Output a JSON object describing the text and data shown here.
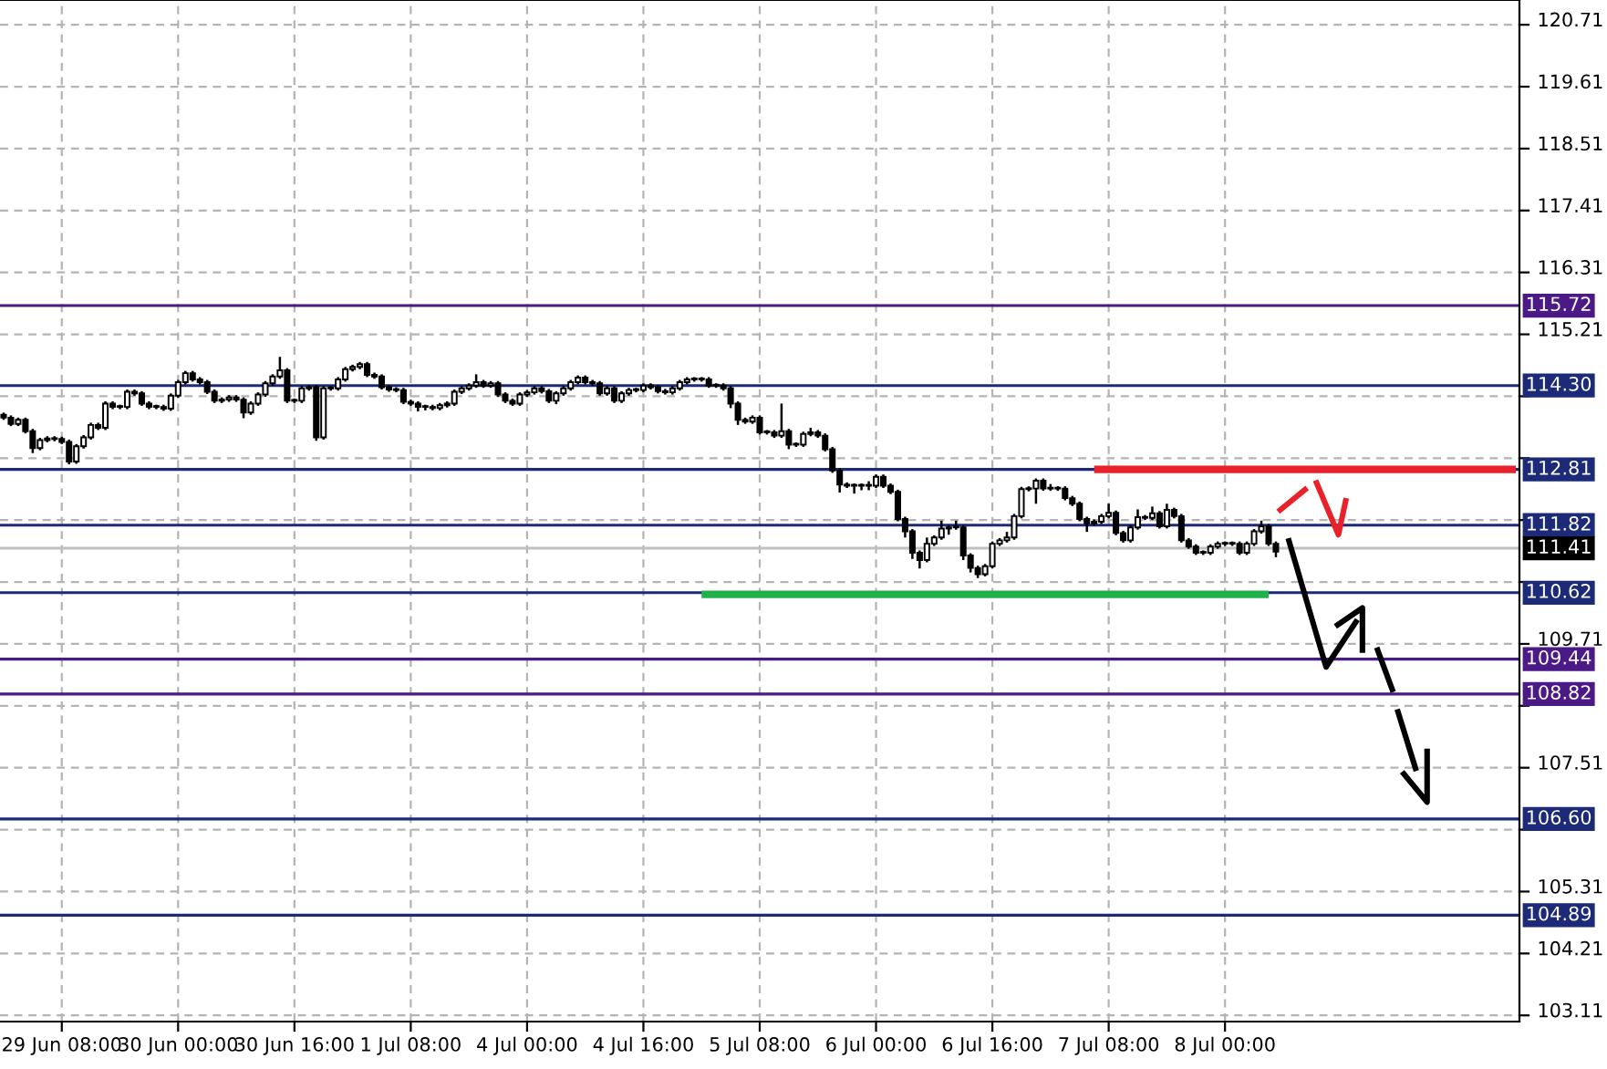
{
  "chart_data": {
    "type": "candlestick",
    "categories": [
      null,
      null,
      null,
      null,
      null,
      null,
      null,
      null,
      "29 Jun 08:00",
      null,
      null,
      null,
      null,
      null,
      null,
      null,
      null,
      null,
      null,
      null,
      null,
      null,
      null,
      null,
      "30 Jun 00:00",
      null,
      null,
      null,
      null,
      null,
      null,
      null,
      null,
      null,
      null,
      null,
      null,
      null,
      null,
      null,
      "30 Jun 16:00",
      null,
      null,
      null,
      null,
      null,
      null,
      null,
      null,
      null,
      null,
      null,
      null,
      null,
      null,
      null,
      "1 Jul 08:00",
      null,
      null,
      null,
      null,
      null,
      null,
      null,
      null,
      null,
      null,
      null,
      null,
      null,
      null,
      null,
      "4 Jul 00:00",
      null,
      null,
      null,
      null,
      null,
      null,
      null,
      null,
      null,
      null,
      null,
      null,
      null,
      null,
      null,
      "4 Jul 16:00",
      null,
      null,
      null,
      null,
      null,
      null,
      null,
      null,
      null,
      null,
      null,
      null,
      null,
      null,
      null,
      "5 Jul 08:00",
      null,
      null,
      null,
      null,
      null,
      null,
      null,
      null,
      null,
      null,
      null,
      null,
      null,
      null,
      null,
      "6 Jul 00:00",
      null,
      null,
      null,
      null,
      null,
      null,
      null,
      null,
      null,
      null,
      null,
      null,
      null,
      null,
      null,
      "6 Jul 16:00",
      null,
      null,
      null,
      null,
      null,
      null,
      null,
      null,
      null,
      null,
      null,
      null,
      null,
      null,
      null,
      "7 Jul 08:00",
      null,
      null,
      null,
      null,
      null,
      null,
      null,
      null,
      null,
      null,
      null,
      null,
      null,
      null,
      null,
      "8 Jul 00:00",
      null,
      null,
      null,
      null,
      null,
      null,
      null,
      null,
      null,
      null,
      null,
      null,
      null,
      null,
      null,
      null,
      null,
      null,
      null,
      null,
      null,
      null,
      null,
      null,
      null,
      null,
      null,
      null,
      null,
      null,
      null,
      null,
      null,
      null,
      null,
      null,
      null,
      null,
      null,
      null
    ],
    "ohlc": [
      [
        113.78,
        113.82,
        113.69,
        113.73
      ],
      [
        113.73,
        113.77,
        113.58,
        113.62
      ],
      [
        113.62,
        113.73,
        113.58,
        113.69
      ],
      [
        113.69,
        113.73,
        113.45,
        113.49
      ],
      [
        113.49,
        113.53,
        113.1,
        113.19
      ],
      [
        113.19,
        113.37,
        113.15,
        113.33
      ],
      [
        113.33,
        113.4,
        113.29,
        113.36
      ],
      [
        113.36,
        113.4,
        113.31,
        113.35
      ],
      [
        113.35,
        113.39,
        113.26,
        113.3
      ],
      [
        113.3,
        113.34,
        112.9,
        112.95
      ],
      [
        112.95,
        113.26,
        112.91,
        113.22
      ],
      [
        113.22,
        113.42,
        113.18,
        113.38
      ],
      [
        113.38,
        113.64,
        113.34,
        113.6
      ],
      [
        113.6,
        113.64,
        113.51,
        113.55
      ],
      [
        113.55,
        114.02,
        113.51,
        113.98
      ],
      [
        113.98,
        114.02,
        113.88,
        113.92
      ],
      [
        113.92,
        113.96,
        113.88,
        113.92
      ],
      [
        113.92,
        114.23,
        113.88,
        114.19
      ],
      [
        114.19,
        114.23,
        114.12,
        114.16
      ],
      [
        114.16,
        114.2,
        113.94,
        113.98
      ],
      [
        113.98,
        114.02,
        113.88,
        113.92
      ],
      [
        113.92,
        113.96,
        113.88,
        113.92
      ],
      [
        113.92,
        113.96,
        113.85,
        113.89
      ],
      [
        113.89,
        114.16,
        113.85,
        114.12
      ],
      [
        114.12,
        114.4,
        114.08,
        114.36
      ],
      [
        114.36,
        114.56,
        114.32,
        114.52
      ],
      [
        114.52,
        114.56,
        114.37,
        114.41
      ],
      [
        114.41,
        114.45,
        114.32,
        114.36
      ],
      [
        114.36,
        114.4,
        114.15,
        114.19
      ],
      [
        114.19,
        114.23,
        113.99,
        114.03
      ],
      [
        114.03,
        114.09,
        113.99,
        114.05
      ],
      [
        114.05,
        114.13,
        114.01,
        114.09
      ],
      [
        114.09,
        114.13,
        114.01,
        114.05
      ],
      [
        114.05,
        114.09,
        113.72,
        113.82
      ],
      [
        113.82,
        114.02,
        113.78,
        113.98
      ],
      [
        113.98,
        114.18,
        113.94,
        114.14
      ],
      [
        114.14,
        114.38,
        114.1,
        114.34
      ],
      [
        114.34,
        114.5,
        114.3,
        114.46
      ],
      [
        114.46,
        114.81,
        114.42,
        114.57
      ],
      [
        114.57,
        114.61,
        113.99,
        114.03
      ],
      [
        114.03,
        114.07,
        113.99,
        114.03
      ],
      [
        114.03,
        114.29,
        113.99,
        114.25
      ],
      [
        114.25,
        114.31,
        114.21,
        114.27
      ],
      [
        114.27,
        114.31,
        113.32,
        113.38
      ],
      [
        113.38,
        114.29,
        113.34,
        114.25
      ],
      [
        114.25,
        114.29,
        114.21,
        114.25
      ],
      [
        114.25,
        114.45,
        114.21,
        114.41
      ],
      [
        114.41,
        114.63,
        114.37,
        114.59
      ],
      [
        114.59,
        114.67,
        114.55,
        114.63
      ],
      [
        114.63,
        114.72,
        114.59,
        114.68
      ],
      [
        114.68,
        114.72,
        114.45,
        114.49
      ],
      [
        114.49,
        114.53,
        114.42,
        114.46
      ],
      [
        114.46,
        114.5,
        114.23,
        114.27
      ],
      [
        114.27,
        114.31,
        114.19,
        114.23
      ],
      [
        114.23,
        114.27,
        114.18,
        114.22
      ],
      [
        114.22,
        114.26,
        113.97,
        114.01
      ],
      [
        114.01,
        114.05,
        113.94,
        113.98
      ],
      [
        113.98,
        114.02,
        113.84,
        113.92
      ],
      [
        113.92,
        113.96,
        113.86,
        113.92
      ],
      [
        113.92,
        113.96,
        113.86,
        113.9
      ],
      [
        113.9,
        113.99,
        113.86,
        113.95
      ],
      [
        113.95,
        114.02,
        113.91,
        113.98
      ],
      [
        113.98,
        114.23,
        113.94,
        114.19
      ],
      [
        114.19,
        114.29,
        114.15,
        114.25
      ],
      [
        114.25,
        114.34,
        114.21,
        114.3
      ],
      [
        114.3,
        114.5,
        114.26,
        114.36
      ],
      [
        114.36,
        114.4,
        114.26,
        114.3
      ],
      [
        114.3,
        114.38,
        114.26,
        114.34
      ],
      [
        114.34,
        114.38,
        114.1,
        114.14
      ],
      [
        114.14,
        114.18,
        113.99,
        114.03
      ],
      [
        114.03,
        114.07,
        113.94,
        113.98
      ],
      [
        113.98,
        114.18,
        113.94,
        114.14
      ],
      [
        114.14,
        114.22,
        114.1,
        114.18
      ],
      [
        114.18,
        114.29,
        114.14,
        114.25
      ],
      [
        114.25,
        114.29,
        114.16,
        114.2
      ],
      [
        114.2,
        114.24,
        113.99,
        114.03
      ],
      [
        114.03,
        114.2,
        113.97,
        114.16
      ],
      [
        114.16,
        114.29,
        114.12,
        114.25
      ],
      [
        114.25,
        114.4,
        114.21,
        114.36
      ],
      [
        114.36,
        114.48,
        114.32,
        114.44
      ],
      [
        114.44,
        114.48,
        114.32,
        114.36
      ],
      [
        114.36,
        114.4,
        114.3,
        114.34
      ],
      [
        114.34,
        114.38,
        114.12,
        114.16
      ],
      [
        114.16,
        114.29,
        114.12,
        114.25
      ],
      [
        114.25,
        114.29,
        113.99,
        114.03
      ],
      [
        114.03,
        114.2,
        113.99,
        114.16
      ],
      [
        114.16,
        114.26,
        114.12,
        114.22
      ],
      [
        114.22,
        114.26,
        114.18,
        114.22
      ],
      [
        114.22,
        114.34,
        114.18,
        114.3
      ],
      [
        114.3,
        114.34,
        114.23,
        114.27
      ],
      [
        114.27,
        114.31,
        114.16,
        114.2
      ],
      [
        114.2,
        114.24,
        114.14,
        114.18
      ],
      [
        114.18,
        114.29,
        114.14,
        114.25
      ],
      [
        114.25,
        114.4,
        114.21,
        114.36
      ],
      [
        114.36,
        114.45,
        114.32,
        114.41
      ],
      [
        114.41,
        114.45,
        114.37,
        114.41
      ],
      [
        114.41,
        114.45,
        114.37,
        114.41
      ],
      [
        114.41,
        114.45,
        114.26,
        114.3
      ],
      [
        114.3,
        114.34,
        114.26,
        114.3
      ],
      [
        114.3,
        114.34,
        114.21,
        114.25
      ],
      [
        114.25,
        114.29,
        113.9,
        113.98
      ],
      [
        113.98,
        114.02,
        113.6,
        113.69
      ],
      [
        113.69,
        113.73,
        113.62,
        113.66
      ],
      [
        113.66,
        113.77,
        113.62,
        113.73
      ],
      [
        113.73,
        113.77,
        113.43,
        113.47
      ],
      [
        113.47,
        113.51,
        113.43,
        113.47
      ],
      [
        113.47,
        113.51,
        113.37,
        113.41
      ],
      [
        113.41,
        113.98,
        113.37,
        113.49
      ],
      [
        113.49,
        113.53,
        113.17,
        113.25
      ],
      [
        113.25,
        113.29,
        113.21,
        113.25
      ],
      [
        113.25,
        113.48,
        113.21,
        113.44
      ],
      [
        113.44,
        113.55,
        113.4,
        113.47
      ],
      [
        113.47,
        113.51,
        113.37,
        113.41
      ],
      [
        113.41,
        113.45,
        113.13,
        113.17
      ],
      [
        113.17,
        113.21,
        112.75,
        112.79
      ],
      [
        112.79,
        112.83,
        112.4,
        112.54
      ],
      [
        112.54,
        112.58,
        112.48,
        112.52
      ],
      [
        112.52,
        112.56,
        112.38,
        112.52
      ],
      [
        112.52,
        112.56,
        112.44,
        112.52
      ],
      [
        112.52,
        112.6,
        112.44,
        112.52
      ],
      [
        112.52,
        112.72,
        112.48,
        112.68
      ],
      [
        112.68,
        112.72,
        112.48,
        112.52
      ],
      [
        112.52,
        112.56,
        112.37,
        112.41
      ],
      [
        112.41,
        112.45,
        111.89,
        111.93
      ],
      [
        111.93,
        111.97,
        111.6,
        111.71
      ],
      [
        111.71,
        111.75,
        111.22,
        111.33
      ],
      [
        111.33,
        111.37,
        111.05,
        111.2
      ],
      [
        111.2,
        111.6,
        111.16,
        111.49
      ],
      [
        111.49,
        111.64,
        111.45,
        111.6
      ],
      [
        111.6,
        111.9,
        111.56,
        111.76
      ],
      [
        111.76,
        111.82,
        111.65,
        111.78
      ],
      [
        111.78,
        111.9,
        111.74,
        111.78
      ],
      [
        111.78,
        111.82,
        111.2,
        111.28
      ],
      [
        111.28,
        111.32,
        110.98,
        111.06
      ],
      [
        111.06,
        111.1,
        110.88,
        110.95
      ],
      [
        110.95,
        111.13,
        110.91,
        111.09
      ],
      [
        111.09,
        111.53,
        111.05,
        111.49
      ],
      [
        111.49,
        111.59,
        111.45,
        111.55
      ],
      [
        111.55,
        111.7,
        111.51,
        111.6
      ],
      [
        111.6,
        112.02,
        111.56,
        111.98
      ],
      [
        111.98,
        112.5,
        111.94,
        112.46
      ],
      [
        112.46,
        112.51,
        112.42,
        112.47
      ],
      [
        112.47,
        112.65,
        112.2,
        112.61
      ],
      [
        112.61,
        112.65,
        112.43,
        112.47
      ],
      [
        112.47,
        112.55,
        112.43,
        112.47
      ],
      [
        112.47,
        112.51,
        112.43,
        112.47
      ],
      [
        112.47,
        112.51,
        112.26,
        112.3
      ],
      [
        112.3,
        112.34,
        112.16,
        112.2
      ],
      [
        112.2,
        112.24,
        111.89,
        111.93
      ],
      [
        111.93,
        111.97,
        111.7,
        111.85
      ],
      [
        111.85,
        111.92,
        111.81,
        111.88
      ],
      [
        111.88,
        112.02,
        111.84,
        111.98
      ],
      [
        111.98,
        112.2,
        111.94,
        112.04
      ],
      [
        112.04,
        112.08,
        111.64,
        111.68
      ],
      [
        111.68,
        111.72,
        111.51,
        111.55
      ],
      [
        111.55,
        111.82,
        111.51,
        111.78
      ],
      [
        111.78,
        112.1,
        111.74,
        111.96
      ],
      [
        111.96,
        112.0,
        111.91,
        111.95
      ],
      [
        111.95,
        112.15,
        111.91,
        112.03
      ],
      [
        112.03,
        112.07,
        111.76,
        111.8
      ],
      [
        111.8,
        112.2,
        111.76,
        112.09
      ],
      [
        112.09,
        112.13,
        111.94,
        111.98
      ],
      [
        111.98,
        112.02,
        111.51,
        111.55
      ],
      [
        111.55,
        111.59,
        111.4,
        111.44
      ],
      [
        111.44,
        111.48,
        111.29,
        111.33
      ],
      [
        111.33,
        111.37,
        111.29,
        111.33
      ],
      [
        111.33,
        111.48,
        111.29,
        111.44
      ],
      [
        111.44,
        111.53,
        111.4,
        111.49
      ],
      [
        111.49,
        111.53,
        111.45,
        111.49
      ],
      [
        111.49,
        111.53,
        111.45,
        111.49
      ],
      [
        111.49,
        111.53,
        111.29,
        111.33
      ],
      [
        111.33,
        111.53,
        111.29,
        111.49
      ],
      [
        111.49,
        111.75,
        111.45,
        111.71
      ],
      [
        111.71,
        111.9,
        111.67,
        111.8
      ],
      [
        111.8,
        111.84,
        111.45,
        111.49
      ],
      [
        111.49,
        111.53,
        111.25,
        111.35
      ],
      null,
      null,
      null,
      null,
      null,
      null,
      null,
      null,
      null,
      null,
      null,
      null,
      null,
      null,
      null,
      null,
      null,
      null,
      null,
      null,
      null,
      null,
      null,
      null,
      null,
      null,
      null,
      null,
      null,
      null,
      null,
      null,
      null
    ],
    "series": [
      {
        "type": "line",
        "color": "#e8212a",
        "values": [
          null,
          null,
          null,
          null,
          null,
          null,
          null,
          null,
          null,
          null,
          null,
          null,
          null,
          null,
          null,
          null,
          null,
          null,
          null,
          null,
          null,
          null,
          null,
          null,
          null,
          null,
          null,
          null,
          null,
          null,
          null,
          null,
          null,
          null,
          null,
          null,
          null,
          null,
          null,
          null,
          null,
          null,
          null,
          null,
          null,
          null,
          null,
          null,
          null,
          null,
          null,
          null,
          null,
          null,
          null,
          null,
          null,
          null,
          null,
          null,
          null,
          null,
          null,
          null,
          null,
          null,
          null,
          null,
          null,
          null,
          null,
          null,
          null,
          null,
          null,
          null,
          null,
          null,
          null,
          null,
          null,
          null,
          null,
          null,
          null,
          null,
          null,
          null,
          null,
          null,
          null,
          null,
          null,
          null,
          null,
          null,
          null,
          null,
          null,
          null,
          null,
          null,
          null,
          null,
          null,
          null,
          null,
          null,
          null,
          null,
          null,
          null,
          null,
          null,
          null,
          null,
          null,
          null,
          null,
          null,
          null,
          null,
          null,
          null,
          null,
          null,
          null,
          null,
          null,
          null,
          null,
          null,
          null,
          null,
          null,
          null,
          null,
          null,
          null,
          null,
          null,
          null,
          null,
          null,
          null,
          null,
          null,
          null,
          null,
          null,
          112.81,
          112.81,
          112.81,
          112.81,
          112.81,
          112.81,
          112.81,
          112.81,
          112.81,
          112.81,
          112.81,
          112.81,
          112.81,
          112.81,
          112.81,
          112.81,
          112.81,
          112.81,
          112.81,
          112.81,
          112.81,
          112.81,
          112.81,
          112.81,
          112.81,
          112.81,
          112.81,
          112.81,
          112.81,
          112.81,
          112.81,
          112.81,
          112.81,
          112.81,
          112.81,
          112.81,
          112.81,
          112.81,
          112.81,
          112.81,
          112.81,
          112.81,
          112.81,
          112.81,
          112.81,
          112.81,
          112.81,
          112.81,
          112.81,
          112.81,
          112.81,
          112.81,
          112.81,
          112.81,
          112.81,
          112.81,
          112.81,
          112.81,
          112.81
        ]
      },
      {
        "type": "line",
        "color": "#22b04a",
        "values": [
          null,
          null,
          null,
          null,
          null,
          null,
          null,
          null,
          null,
          null,
          null,
          null,
          null,
          null,
          null,
          null,
          null,
          null,
          null,
          null,
          null,
          null,
          null,
          null,
          null,
          null,
          null,
          null,
          null,
          null,
          null,
          null,
          null,
          null,
          null,
          null,
          null,
          null,
          null,
          null,
          null,
          null,
          null,
          null,
          null,
          null,
          null,
          null,
          null,
          null,
          null,
          null,
          null,
          null,
          null,
          null,
          null,
          null,
          null,
          null,
          null,
          null,
          null,
          null,
          null,
          null,
          null,
          null,
          null,
          null,
          null,
          null,
          null,
          null,
          null,
          null,
          null,
          null,
          null,
          null,
          null,
          null,
          null,
          null,
          null,
          null,
          null,
          null,
          null,
          null,
          null,
          null,
          null,
          null,
          null,
          null,
          110.59,
          110.59,
          110.59,
          110.59,
          110.59,
          110.59,
          110.59,
          110.59,
          110.59,
          110.59,
          110.59,
          110.59,
          110.59,
          110.59,
          110.59,
          110.59,
          110.59,
          110.59,
          110.59,
          110.59,
          110.59,
          110.59,
          110.59,
          110.59,
          110.59,
          110.59,
          110.59,
          110.59,
          110.59,
          110.59,
          110.59,
          110.59,
          110.59,
          110.59,
          110.59,
          110.59,
          110.59,
          110.59,
          110.59,
          110.59,
          110.59,
          110.59,
          110.59,
          110.59,
          110.59,
          110.59,
          110.59,
          110.59,
          110.59,
          110.59,
          110.59,
          110.59,
          110.59,
          110.59,
          110.59,
          110.59,
          110.59,
          110.59,
          110.59,
          110.59,
          110.59,
          110.59,
          110.59,
          110.59,
          110.59,
          110.59,
          110.59,
          110.59,
          110.59,
          110.59,
          110.59,
          110.59,
          110.59,
          110.59,
          110.59,
          110.59,
          110.59,
          110.59,
          110.59,
          null,
          null,
          null,
          null,
          null,
          null,
          null,
          null,
          null,
          null,
          null,
          null,
          null,
          null,
          null,
          null,
          null,
          null,
          null,
          null,
          null,
          null,
          null,
          null,
          null,
          null,
          null,
          null,
          null,
          null,
          null,
          null,
          null,
          null
        ]
      }
    ],
    "ref_lines": [
      {
        "axis": "y",
        "value": 115.72,
        "label": "115.72",
        "color": "#4b1a86"
      },
      {
        "axis": "y",
        "value": 114.3,
        "label": "114.30",
        "color": "#1c2a78"
      },
      {
        "axis": "y",
        "value": 112.81,
        "label": "112.81",
        "color": "#1c2a78"
      },
      {
        "axis": "y",
        "value": 111.82,
        "label": "111.82",
        "color": "#1c2a78"
      },
      {
        "axis": "y",
        "value": 111.41,
        "label": "111.41",
        "color": "#c0c0c0"
      },
      {
        "axis": "y",
        "value": 110.62,
        "label": "110.62",
        "color": "#1c2a78"
      },
      {
        "axis": "y",
        "value": 109.44,
        "label": "109.44",
        "color": "#4b1a86"
      },
      {
        "axis": "y",
        "value": 108.82,
        "label": "108.82",
        "color": "#4b1a86"
      },
      {
        "axis": "y",
        "value": 106.6,
        "label": "106.60",
        "color": "#1c2a78"
      },
      {
        "axis": "y",
        "value": 104.89,
        "label": "104.89",
        "color": "#1c2a78"
      }
    ],
    "ylim": [
      103.0,
      121.15
    ],
    "yticks": [
      {
        "value": 103.11,
        "label": "103.11"
      },
      {
        "value": 104.21,
        "label": "104.21"
      },
      {
        "value": 105.31,
        "label": "105.31"
      },
      {
        "value": 106.41,
        "label": null
      },
      {
        "value": 107.51,
        "label": "107.51"
      },
      {
        "value": 108.61,
        "label": null
      },
      {
        "value": 109.71,
        "label": "109.71"
      },
      {
        "value": 110.81,
        "label": null
      },
      {
        "value": 111.91,
        "label": null
      },
      {
        "value": 113.01,
        "label": null
      },
      {
        "value": 114.11,
        "label": null
      },
      {
        "value": 115.21,
        "label": "115.21"
      },
      {
        "value": 116.31,
        "label": "116.31"
      },
      {
        "value": 117.41,
        "label": "117.41"
      },
      {
        "value": 118.51,
        "label": "118.51"
      },
      {
        "value": 119.61,
        "label": "119.61"
      },
      {
        "value": 120.71,
        "label": "120.71"
      }
    ],
    "grid": true
  }
}
